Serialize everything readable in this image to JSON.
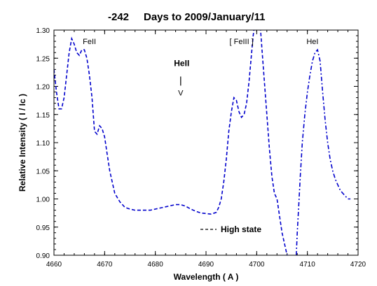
{
  "chart_data": {
    "type": "line",
    "title_number": "-242",
    "title_text": "Days to 2009/January/11",
    "xlabel": "Wavelength  ( A )",
    "ylabel": "Relative Intensity  ( I / Ic )",
    "xlim": [
      4660,
      4720
    ],
    "ylim": [
      0.9,
      1.3
    ],
    "xticks": [
      4660,
      4670,
      4680,
      4690,
      4700,
      4710,
      4720
    ],
    "xtick_labels": [
      "4660",
      "4670",
      "4680",
      "4690",
      "4700",
      "4710",
      "4720"
    ],
    "yticks": [
      0.9,
      0.95,
      1.0,
      1.05,
      1.1,
      1.15,
      1.2,
      1.25,
      1.3
    ],
    "ytick_labels": [
      "0.90",
      "0.95",
      "1.00",
      "1.05",
      "1.10",
      "1.15",
      "1.20",
      "1.25",
      "1.30"
    ],
    "grid": false,
    "legend_position": "bottom-center",
    "series": [
      {
        "name": "High state",
        "color": "#0000cc",
        "style": "dashed",
        "x": [
          4660.0,
          4660.5,
          4661.0,
          4661.5,
          4662.0,
          4662.5,
          4663.0,
          4663.5,
          4664.0,
          4664.5,
          4665.0,
          4665.5,
          4666.0,
          4666.5,
          4667.0,
          4667.5,
          4668.0,
          4668.5,
          4669.0,
          4669.5,
          4670.0,
          4670.5,
          4671.0,
          4671.5,
          4672.0,
          4673.0,
          4674.0,
          4675.0,
          4676.0,
          4677.0,
          4678.0,
          4679.0,
          4680.0,
          4681.0,
          4682.0,
          4683.0,
          4684.0,
          4685.0,
          4686.0,
          4687.0,
          4688.0,
          4689.0,
          4690.0,
          4691.0,
          4692.0,
          4692.5,
          4693.0,
          4693.5,
          4694.0,
          4694.5,
          4695.0,
          4695.5,
          4696.0,
          4696.5,
          4697.0,
          4697.5,
          4698.0,
          4698.5,
          4699.0,
          4699.3,
          4699.6,
          4700.0,
          4700.3,
          4700.6,
          4701.0,
          4701.5,
          4702.0,
          4702.5,
          4703.0,
          4703.5,
          4704.0,
          4704.5,
          4705.0,
          4705.5,
          4706.0
        ],
        "y": [
          1.23,
          1.19,
          1.16,
          1.16,
          1.18,
          1.22,
          1.26,
          1.285,
          1.275,
          1.26,
          1.255,
          1.265,
          1.265,
          1.25,
          1.22,
          1.18,
          1.12,
          1.115,
          1.13,
          1.125,
          1.11,
          1.08,
          1.05,
          1.03,
          1.01,
          0.995,
          0.985,
          0.982,
          0.98,
          0.98,
          0.98,
          0.98,
          0.982,
          0.984,
          0.986,
          0.988,
          0.99,
          0.99,
          0.987,
          0.982,
          0.978,
          0.975,
          0.974,
          0.973,
          0.976,
          0.985,
          1.0,
          1.03,
          1.07,
          1.12,
          1.155,
          1.18,
          1.175,
          1.155,
          1.145,
          1.15,
          1.17,
          1.21,
          1.26,
          1.29,
          1.31,
          1.33,
          1.33,
          1.32,
          1.27,
          1.21,
          1.15,
          1.09,
          1.04,
          1.01,
          1.0,
          0.97,
          0.94,
          0.92,
          0.9
        ]
      },
      {
        "name": "",
        "color": "#0000cc",
        "style": "dashdot",
        "x": [
          4707.8,
          4708.0,
          4708.3,
          4708.6,
          4709.0,
          4709.5,
          4710.0,
          4710.5,
          4711.0,
          4711.5,
          4712.0,
          4712.5,
          4713.0,
          4713.5,
          4714.0,
          4714.5,
          4715.0,
          4715.5,
          4716.0,
          4716.5,
          4717.0,
          4717.5,
          4718.0,
          4718.5
        ],
        "y": [
          0.9,
          0.94,
          0.99,
          1.04,
          1.1,
          1.15,
          1.19,
          1.22,
          1.245,
          1.26,
          1.265,
          1.245,
          1.19,
          1.14,
          1.1,
          1.07,
          1.05,
          1.035,
          1.025,
          1.015,
          1.01,
          1.005,
          1.0,
          1.0
        ]
      }
    ],
    "annotations": [
      {
        "text": "FeII",
        "x": 4667.0,
        "y": 1.275,
        "style": "normal"
      },
      {
        "text": "[ FeIII ]",
        "x": 4697.0,
        "y": 1.275,
        "style": "normal"
      },
      {
        "text": "HeI",
        "x": 4711.0,
        "y": 1.275,
        "style": "normal"
      },
      {
        "text": "HeII",
        "x": 4685.2,
        "y": 1.236,
        "style": "bold"
      }
    ],
    "marker_annotation": {
      "symbol": "V",
      "x": 4685.0,
      "y_top": 1.21,
      "y_bottom": 1.195
    },
    "legend_label": "High state"
  }
}
